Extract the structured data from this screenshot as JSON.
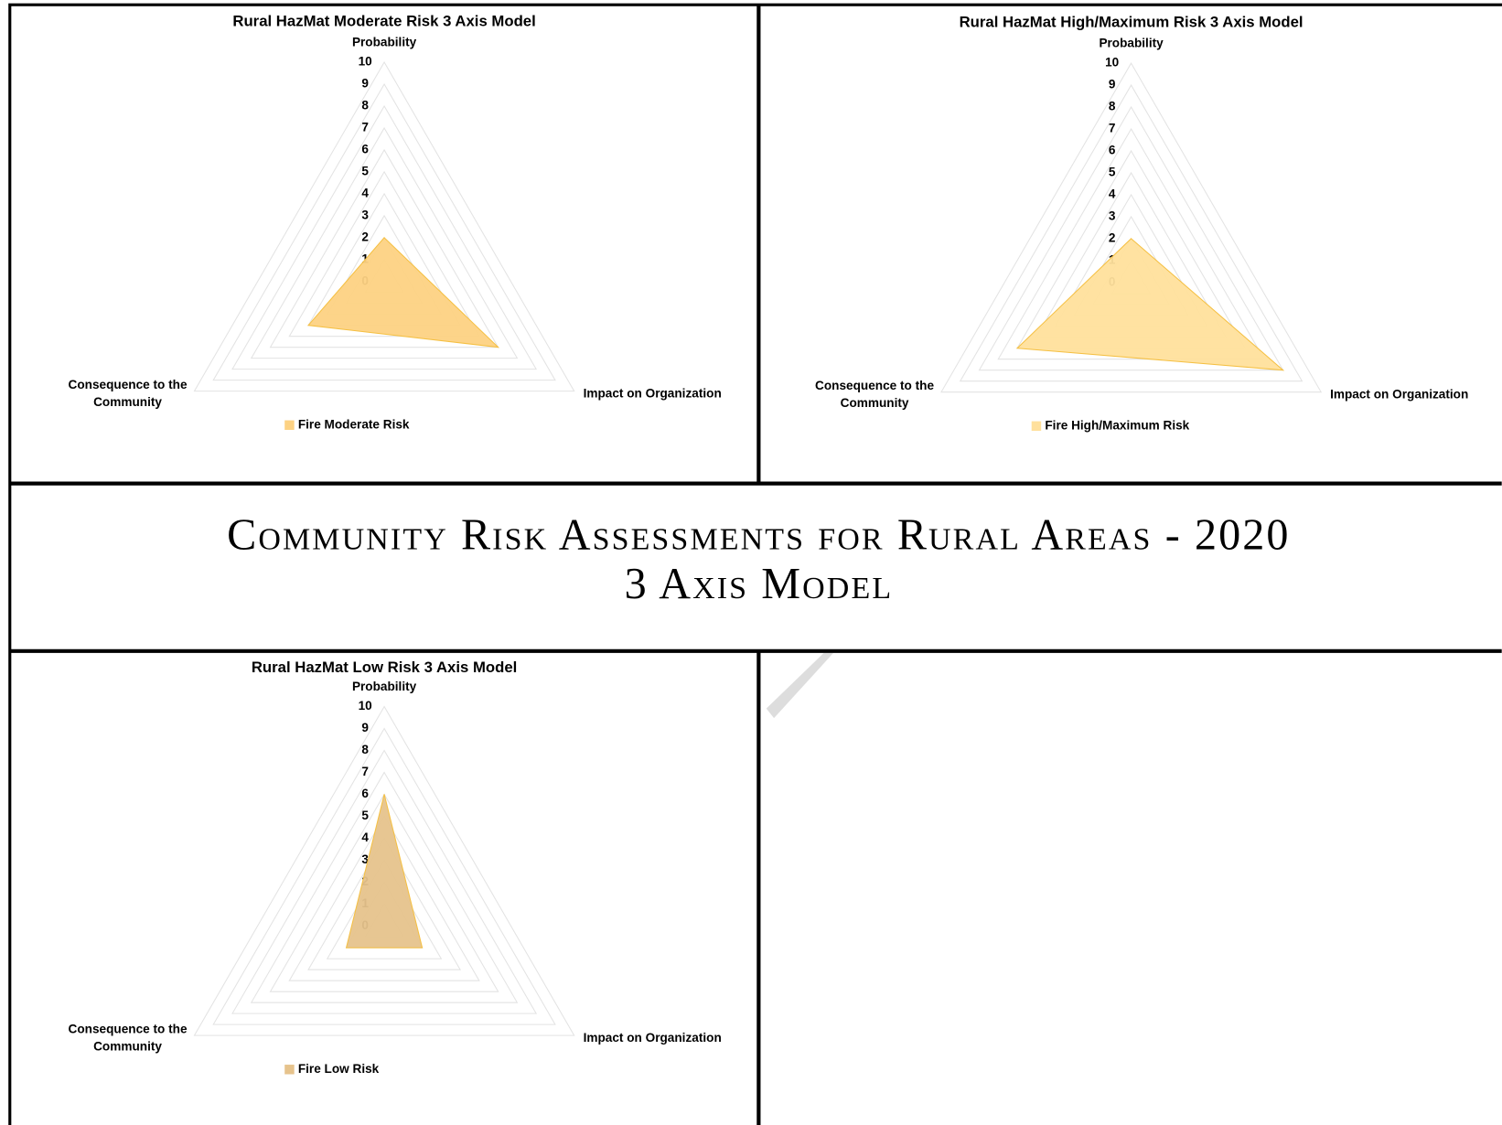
{
  "page_title": [
    "Community Risk Assessments for Rural Areas - 2020",
    "3 Axis Model"
  ],
  "chart_data": [
    {
      "type": "radar",
      "title": "Rural HazMat Moderate Risk 3 Axis Model",
      "categories": [
        "Probability",
        "Impact on Organization",
        "Consequence to the Community"
      ],
      "series": [
        {
          "name": "Fire Moderate Risk",
          "color": "#fdd283",
          "values": [
            2,
            6,
            4
          ]
        }
      ],
      "ylim": [
        0,
        10
      ],
      "yticks": [
        0,
        1,
        2,
        3,
        4,
        5,
        6,
        7,
        8,
        9,
        10
      ],
      "grid": true
    },
    {
      "type": "radar",
      "title": "Rural HazMat High/Maximum Risk 3 Axis Model",
      "categories": [
        "Probability",
        "Impact on Organization",
        "Consequence to the Community"
      ],
      "series": [
        {
          "name": "Fire High/Maximum Risk",
          "color": "#ffe09c",
          "values": [
            2,
            8,
            6
          ]
        }
      ],
      "ylim": [
        0,
        10
      ],
      "yticks": [
        0,
        1,
        2,
        3,
        4,
        5,
        6,
        7,
        8,
        9,
        10
      ],
      "grid": true
    },
    {
      "type": "radar",
      "title": "Rural HazMat Low Risk 3 Axis Model",
      "categories": [
        "Probability",
        "Impact on Organization",
        "Consequence to the Community"
      ],
      "series": [
        {
          "name": "Fire Low Risk",
          "color": "#e6c38c",
          "values": [
            6,
            2,
            2
          ]
        }
      ],
      "ylim": [
        0,
        10
      ],
      "yticks": [
        0,
        1,
        2,
        3,
        4,
        5,
        6,
        7,
        8,
        9,
        10
      ],
      "grid": true
    }
  ]
}
